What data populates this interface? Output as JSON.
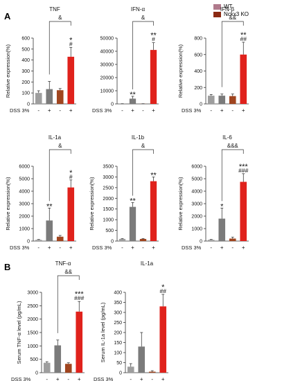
{
  "figure": {
    "panel_labels": [
      "A",
      "B"
    ],
    "legend": [
      {
        "label": "WT",
        "color": "#b07a8c"
      },
      {
        "label": "Nckx3 KO",
        "color": "#8b2a12"
      }
    ],
    "xaxis_label": "DSS 3%",
    "dss_signs": [
      "-",
      "+",
      "-",
      "+"
    ],
    "colors": {
      "wt_untreated": "#9e9e9e",
      "wt_dss": "#7b7b7b",
      "ko_untreated": "#a0451f",
      "ko_dss": "#e0221c"
    }
  },
  "chart_data": [
    {
      "type": "bar",
      "title": "TNF",
      "ylabel": "Relative expression(%)",
      "ylim": [
        0,
        600
      ],
      "yticks": [
        "0",
        "100",
        "200",
        "300",
        "400",
        "500",
        "600"
      ],
      "values": [
        100,
        135,
        125,
        430
      ],
      "errors": [
        20,
        70,
        15,
        85
      ],
      "stars": [
        "",
        "",
        "",
        "*"
      ],
      "hashes": [
        "",
        "",
        "",
        "#"
      ],
      "bracket_label": "&"
    },
    {
      "type": "bar",
      "title": "IFN-α",
      "ylabel": "",
      "ylim": [
        0,
        50000
      ],
      "yticks": [
        "0",
        "10000",
        "20000",
        "30000",
        "40000",
        "50000"
      ],
      "values": [
        100,
        4000,
        100,
        41000
      ],
      "errors": [
        50,
        1800,
        50,
        5500
      ],
      "stars": [
        "",
        "**",
        "",
        "**"
      ],
      "hashes": [
        "",
        "",
        "",
        "#"
      ],
      "bracket_label": "&"
    },
    {
      "type": "bar",
      "title": "IFN-β",
      "ylabel": "Relative expression(%)",
      "ylim": [
        0,
        800
      ],
      "yticks": [
        "0",
        "200",
        "400",
        "600",
        "800"
      ],
      "values": [
        100,
        100,
        95,
        600
      ],
      "errors": [
        15,
        20,
        25,
        150
      ],
      "stars": [
        "",
        "",
        "",
        "**"
      ],
      "hashes": [
        "",
        "",
        "",
        "##"
      ],
      "bracket_label": "&&"
    },
    {
      "type": "bar",
      "title": "IL-1a",
      "ylabel": "Relative expression(%)",
      "ylim": [
        0,
        6000
      ],
      "yticks": [
        "0",
        "1000",
        "2000",
        "3000",
        "4000",
        "5000",
        "6000"
      ],
      "values": [
        100,
        1650,
        350,
        4300
      ],
      "errors": [
        30,
        1000,
        100,
        600
      ],
      "stars": [
        "",
        "**",
        "",
        "*"
      ],
      "hashes": [
        "",
        "",
        "",
        "#"
      ],
      "bracket_label": "&"
    },
    {
      "type": "bar",
      "title": "IL-1b",
      "ylabel": "Relative expression(%)",
      "ylim": [
        0,
        3500
      ],
      "yticks": [
        "0",
        "500",
        "1000",
        "1500",
        "2000",
        "2500",
        "3000",
        "3500"
      ],
      "values": [
        100,
        1600,
        100,
        2800
      ],
      "errors": [
        20,
        200,
        20,
        200
      ],
      "stars": [
        "",
        "**",
        "",
        "**"
      ],
      "hashes": [
        "",
        "",
        "",
        ""
      ],
      "bracket_label": "&"
    },
    {
      "type": "bar",
      "title": "IL-6",
      "ylabel": "Relative expression(%)",
      "ylim": [
        0,
        6000
      ],
      "yticks": [
        "0",
        "1000",
        "2000",
        "3000",
        "4000",
        "5000",
        "6000"
      ],
      "values": [
        100,
        1800,
        200,
        4750
      ],
      "errors": [
        30,
        850,
        120,
        650
      ],
      "stars": [
        "",
        "*",
        "",
        "***"
      ],
      "hashes": [
        "",
        "",
        "",
        "###"
      ],
      "bracket_label": "&&&"
    },
    {
      "type": "bar",
      "title": "TNF-α",
      "ylabel": "Serum TNF-α level (pg/mL)",
      "ylim": [
        0,
        3000
      ],
      "yticks": [
        "0",
        "500",
        "1000",
        "1500",
        "2000",
        "2500",
        "3000"
      ],
      "values": [
        370,
        1020,
        330,
        2280
      ],
      "errors": [
        40,
        200,
        40,
        380
      ],
      "stars": [
        "",
        "",
        "",
        "***"
      ],
      "hashes": [
        "",
        "",
        "",
        "###"
      ],
      "bracket_label": "&&"
    },
    {
      "type": "bar",
      "title": "IL-1a",
      "ylabel": "Serum IL-1a level (pg/mL)",
      "ylim": [
        0,
        400
      ],
      "yticks": [
        "0",
        "50",
        "100",
        "150",
        "200",
        "250",
        "300",
        "350",
        "400"
      ],
      "values": [
        30,
        130,
        5,
        330
      ],
      "errors": [
        15,
        70,
        5,
        60
      ],
      "stars": [
        "",
        "",
        "",
        "*"
      ],
      "hashes": [
        "",
        "",
        "",
        "##"
      ],
      "bracket_label": ""
    }
  ]
}
